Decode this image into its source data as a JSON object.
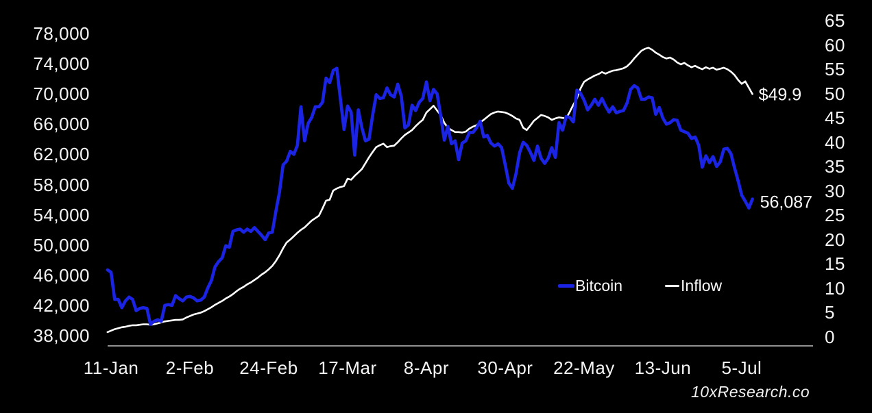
{
  "chart_data": {
    "type": "line",
    "title": "",
    "frequency": "daily",
    "first_point_label": "10-Jan",
    "last_point_label": "8-Jul",
    "x_axis": {
      "tick_labels": [
        "11-Jan",
        "2-Feb",
        "24-Feb",
        "17-Mar",
        "8-Apr",
        "30-Apr",
        "22-May",
        "13-Jun",
        "5-Jul"
      ],
      "tick_days": [
        1,
        23,
        45,
        67,
        89,
        111,
        133,
        155,
        177
      ]
    },
    "y_left": {
      "unit": "USD (Bitcoin price)",
      "min_k": 38,
      "max_k": 78,
      "tick_labels": [
        "78,000",
        "74,000",
        "70,000",
        "66,000",
        "62,000",
        "58,000",
        "54,000",
        "50,000",
        "46,000",
        "42,000",
        "38,000"
      ],
      "tick_values_k": [
        78,
        74,
        70,
        66,
        62,
        58,
        54,
        50,
        46,
        42,
        38
      ]
    },
    "y_right": {
      "unit": "Inflow ($B)",
      "min": 0,
      "max": 65,
      "tick_labels": [
        "65",
        "60",
        "55",
        "50",
        "45",
        "40",
        "35",
        "30",
        "25",
        "20",
        "15",
        "10",
        "5",
        "0"
      ],
      "tick_values": [
        65,
        60,
        55,
        50,
        45,
        40,
        35,
        30,
        25,
        20,
        15,
        10,
        5,
        0
      ]
    },
    "series": [
      {
        "name": "Inflow",
        "axis": "right",
        "color": "#ffffff",
        "values": [
          1.0,
          1.3,
          1.6,
          1.8,
          2.0,
          2.1,
          2.3,
          2.4,
          2.4,
          2.5,
          2.6,
          2.6,
          2.5,
          2.6,
          2.8,
          3.0,
          3.2,
          3.3,
          3.4,
          3.5,
          3.5,
          3.6,
          4.0,
          4.3,
          4.6,
          4.8,
          5.0,
          5.3,
          5.7,
          6.1,
          6.6,
          7.0,
          7.4,
          7.9,
          8.3,
          8.8,
          9.4,
          9.9,
          10.3,
          10.8,
          11.2,
          11.7,
          12.2,
          12.8,
          13.3,
          13.9,
          14.6,
          15.6,
          16.8,
          18.2,
          19.4,
          20.0,
          20.7,
          21.4,
          22.0,
          22.5,
          23.2,
          23.9,
          24.4,
          24.9,
          26.4,
          28.0,
          28.2,
          30.1,
          30.5,
          30.8,
          31.0,
          32.5,
          32.3,
          33.1,
          33.8,
          34.5,
          35.7,
          36.9,
          38.0,
          39.0,
          39.4,
          39.7,
          39.0,
          39.2,
          39.3,
          40.0,
          40.8,
          41.5,
          42.0,
          42.5,
          43.3,
          44.0,
          44.6,
          46.1,
          46.8,
          47.5,
          46.5,
          45.6,
          44.0,
          43.0,
          42.5,
          42.1,
          42.1,
          42.0,
          42.2,
          42.8,
          43.2,
          43.5,
          44.1,
          44.6,
          45.2,
          45.8,
          46.1,
          46.3,
          46.2,
          46.1,
          45.8,
          45.4,
          44.9,
          44.6,
          43.0,
          42.5,
          43.4,
          44.4,
          45.0,
          45.6,
          45.4,
          45.1,
          44.6,
          44.9,
          45.1,
          45.0,
          44.9,
          46.2,
          47.7,
          49.0,
          51.0,
          52.4,
          52.9,
          53.3,
          53.7,
          54.0,
          54.4,
          54.1,
          54.4,
          54.7,
          54.8,
          55.0,
          55.2,
          55.6,
          56.3,
          57.2,
          58.0,
          58.8,
          59.2,
          59.4,
          59.0,
          58.4,
          58.0,
          57.5,
          57.2,
          57.4,
          57.0,
          56.4,
          56.0,
          56.3,
          55.8,
          55.4,
          55.7,
          55.3,
          55.0,
          55.4,
          55.1,
          55.3,
          54.9,
          55.1,
          55.3,
          55.0,
          54.5,
          53.8,
          52.8,
          52.0,
          52.5,
          51.2,
          49.9
        ]
      },
      {
        "name": "Bitcoin",
        "axis": "left",
        "color": "#1b24e4",
        "values_unit": "USD thousands",
        "values": [
          46.7,
          46.4,
          42.8,
          42.8,
          41.7,
          42.6,
          43.1,
          42.8,
          41.3,
          41.6,
          41.7,
          41.6,
          39.5,
          39.9,
          40.1,
          39.9,
          42.0,
          42.1,
          42.0,
          43.3,
          42.9,
          42.6,
          43.1,
          43.2,
          43.0,
          42.6,
          42.7,
          43.1,
          44.3,
          45.3,
          47.1,
          47.8,
          48.3,
          49.9,
          49.7,
          51.8,
          52.0,
          52.1,
          51.7,
          52.1,
          51.8,
          52.3,
          51.8,
          51.3,
          50.7,
          51.6,
          51.7,
          54.5,
          57.0,
          60.6,
          61.1,
          62.4,
          62.0,
          63.2,
          68.3,
          63.8,
          66.1,
          66.9,
          68.3,
          68.3,
          68.9,
          72.1,
          71.5,
          73.1,
          73.4,
          69.4,
          65.3,
          68.4,
          67.6,
          61.9,
          67.9,
          65.5,
          63.8,
          64.0,
          67.2,
          69.9,
          69.4,
          69.5,
          70.8,
          69.9,
          69.6,
          71.3,
          69.7,
          65.5,
          65.9,
          68.5,
          67.8,
          68.9,
          69.4,
          71.6,
          69.1,
          70.6,
          70.0,
          67.1,
          63.9,
          65.7,
          63.4,
          63.8,
          61.3,
          63.5,
          63.8,
          64.9,
          64.9,
          65.5,
          66.4,
          64.3,
          64.5,
          63.5,
          63.1,
          63.4,
          62.9,
          60.6,
          58.2,
          57.5,
          59.4,
          62.2,
          63.6,
          63.2,
          62.3,
          61.2,
          63.1,
          61.5,
          60.8,
          61.5,
          62.9,
          61.6,
          66.2,
          65.2,
          67.0,
          66.9,
          66.3,
          70.5,
          70.1,
          69.2,
          67.9,
          68.5,
          69.3,
          68.5,
          69.4,
          68.4,
          67.6,
          68.3,
          67.5,
          67.7,
          67.8,
          68.8,
          70.6,
          71.1,
          70.8,
          69.3,
          69.3,
          69.6,
          69.5,
          67.3,
          68.2,
          66.8,
          66.0,
          66.2,
          66.6,
          66.5,
          65.2,
          65.0,
          64.8,
          64.1,
          64.3,
          63.2,
          60.3,
          61.8,
          60.9,
          61.7,
          60.4,
          61.0,
          62.7,
          62.8,
          62.1,
          60.2,
          58.5,
          56.6,
          55.8,
          54.9,
          56.087
        ]
      }
    ],
    "annotations": [
      {
        "text": "$49.9",
        "series": "Inflow"
      },
      {
        "text": "56,087",
        "series": "Bitcoin"
      }
    ],
    "legend_position": "inside bottom-right",
    "grid": false,
    "background": "#000000"
  },
  "legend": {
    "items": [
      {
        "label": "Bitcoin",
        "color": "#1b24e4"
      },
      {
        "label": "Inflow",
        "color": "#ffffff"
      }
    ]
  },
  "watermark": "10xResearch.co"
}
